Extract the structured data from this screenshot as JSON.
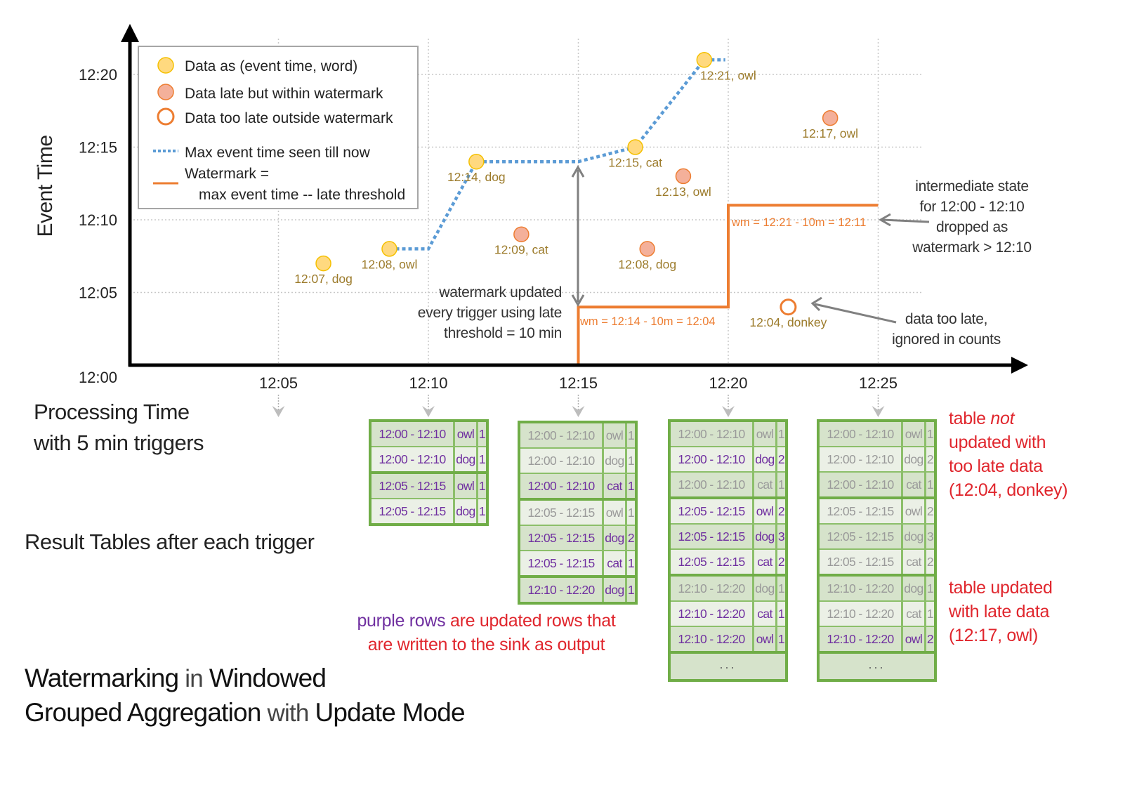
{
  "axes": {
    "ylabel": "Event Time",
    "xlabel_lines": [
      "Processing Time",
      "with 5 min triggers"
    ],
    "y_ticks": [
      "12:00",
      "12:05",
      "12:10",
      "12:15",
      "12:20"
    ],
    "x_ticks": [
      "12:05",
      "12:10",
      "12:15",
      "12:20",
      "12:25"
    ]
  },
  "legend": {
    "on_time": "Data as (event time, word)",
    "late": "Data late but within watermark",
    "too_late": "Data too late outside watermark",
    "max_event": "Max event time seen till now",
    "watermark_1": "Watermark =",
    "watermark_2": "max event time -- late threshold"
  },
  "colors": {
    "on_time_fill": "#ffd97f",
    "on_time_stroke": "#f5c000",
    "late_fill": "#f4b09a",
    "late_stroke": "#ed7d31",
    "watermark": "#ed7d31",
    "max_event": "#5b9bd5",
    "point_label": "#9c7b2b",
    "updated_row": "#7030a0",
    "table_border": "#70ad47",
    "note_red": "#e0262d"
  },
  "chart_data": {
    "type": "scatter",
    "ylabel": "Event Time",
    "xlabel": "Processing Time with 5 min triggers",
    "x_unit": "minutes after 12:00 (processing time)",
    "y_unit": "minutes after 12:00 (event time)",
    "xlim": [
      0,
      30
    ],
    "ylim": [
      0,
      22
    ],
    "grid": true,
    "legend_position": "top-left",
    "points": [
      {
        "label": "12:07, dog",
        "processing": 6.5,
        "event": 7,
        "kind": "on_time"
      },
      {
        "label": "12:08, owl",
        "processing": 8.7,
        "event": 8,
        "kind": "on_time"
      },
      {
        "label": "12:14, dog",
        "processing": 11.6,
        "event": 14,
        "kind": "on_time"
      },
      {
        "label": "12:09, cat",
        "processing": 13.1,
        "event": 9,
        "kind": "late"
      },
      {
        "label": "12:15, cat",
        "processing": 16.9,
        "event": 15,
        "kind": "on_time"
      },
      {
        "label": "12:08, dog",
        "processing": 17.3,
        "event": 8,
        "kind": "late"
      },
      {
        "label": "12:13, owl",
        "processing": 18.5,
        "event": 13,
        "kind": "late"
      },
      {
        "label": "12:21, owl",
        "processing": 19.2,
        "event": 21,
        "kind": "on_time"
      },
      {
        "label": "12:04, donkey",
        "processing": 22.0,
        "event": 4,
        "kind": "too_late"
      },
      {
        "label": "12:17, owl",
        "processing": 23.4,
        "event": 17,
        "kind": "late"
      }
    ],
    "max_event_time_line": [
      [
        8.7,
        8
      ],
      [
        10,
        8
      ],
      [
        11.6,
        14
      ],
      [
        15,
        14
      ],
      [
        16.9,
        15
      ],
      [
        19.2,
        21
      ],
      [
        19.9,
        21
      ]
    ],
    "watermark_line": [
      [
        15,
        0
      ],
      [
        15,
        4
      ],
      [
        20,
        4
      ],
      [
        20,
        11
      ],
      [
        25,
        11
      ]
    ]
  },
  "annotations": {
    "wm_update": [
      "watermark updated",
      "every trigger using late",
      "threshold = 10 min"
    ],
    "wm1": "wm = 12:14 - 10m = 12:04",
    "wm2": "wm = 12:21 - 10m = 12:11",
    "intermediate": [
      "intermediate state",
      "for 12:00 - 12:10",
      "dropped as",
      "watermark > 12:10"
    ],
    "too_late": [
      "data too late,",
      "ignored in counts"
    ]
  },
  "result_tables_label": "Result Tables after each trigger",
  "tables": [
    {
      "trigger": "12:10",
      "rows": [
        {
          "window": "12:00 - 12:10",
          "word": "owl",
          "count": "1",
          "updated": true
        },
        {
          "window": "12:00 - 12:10",
          "word": "dog",
          "count": "1",
          "updated": true
        },
        {
          "window": "12:05 - 12:15",
          "word": "owl",
          "count": "1",
          "updated": true
        },
        {
          "window": "12:05 - 12:15",
          "word": "dog",
          "count": "1",
          "updated": true
        }
      ],
      "group_ends": [
        1,
        3
      ],
      "ellipsis": false
    },
    {
      "trigger": "12:15",
      "rows": [
        {
          "window": "12:00 - 12:10",
          "word": "owl",
          "count": "1",
          "updated": false
        },
        {
          "window": "12:00 - 12:10",
          "word": "dog",
          "count": "1",
          "updated": false
        },
        {
          "window": "12:00 - 12:10",
          "word": "cat",
          "count": "1",
          "updated": true
        },
        {
          "window": "12:05 - 12:15",
          "word": "owl",
          "count": "1",
          "updated": false
        },
        {
          "window": "12:05 - 12:15",
          "word": "dog",
          "count": "2",
          "updated": true
        },
        {
          "window": "12:05 - 12:15",
          "word": "cat",
          "count": "1",
          "updated": true
        },
        {
          "window": "12:10 - 12:20",
          "word": "dog",
          "count": "1",
          "updated": true
        }
      ],
      "group_ends": [
        2,
        5
      ],
      "ellipsis": false
    },
    {
      "trigger": "12:20",
      "rows": [
        {
          "window": "12:00 - 12:10",
          "word": "owl",
          "count": "1",
          "updated": false
        },
        {
          "window": "12:00 - 12:10",
          "word": "dog",
          "count": "2",
          "updated": true
        },
        {
          "window": "12:00 - 12:10",
          "word": "cat",
          "count": "1",
          "updated": false
        },
        {
          "window": "12:05 - 12:15",
          "word": "owl",
          "count": "2",
          "updated": true
        },
        {
          "window": "12:05 - 12:15",
          "word": "dog",
          "count": "3",
          "updated": true
        },
        {
          "window": "12:05 - 12:15",
          "word": "cat",
          "count": "2",
          "updated": true
        },
        {
          "window": "12:10 - 12:20",
          "word": "dog",
          "count": "1",
          "updated": false
        },
        {
          "window": "12:10 - 12:20",
          "word": "cat",
          "count": "1",
          "updated": true
        },
        {
          "window": "12:10 - 12:20",
          "word": "owl",
          "count": "1",
          "updated": true
        }
      ],
      "group_ends": [
        2,
        5,
        8
      ],
      "ellipsis": true
    },
    {
      "trigger": "12:25",
      "rows": [
        {
          "window": "12:00 - 12:10",
          "word": "owl",
          "count": "1",
          "updated": false
        },
        {
          "window": "12:00 - 12:10",
          "word": "dog",
          "count": "2",
          "updated": false
        },
        {
          "window": "12:00 - 12:10",
          "word": "cat",
          "count": "1",
          "updated": false
        },
        {
          "window": "12:05 - 12:15",
          "word": "owl",
          "count": "2",
          "updated": false
        },
        {
          "window": "12:05 - 12:15",
          "word": "dog",
          "count": "3",
          "updated": false
        },
        {
          "window": "12:05 - 12:15",
          "word": "cat",
          "count": "2",
          "updated": false
        },
        {
          "window": "12:10 - 12:20",
          "word": "dog",
          "count": "1",
          "updated": false
        },
        {
          "window": "12:10 - 12:20",
          "word": "cat",
          "count": "1",
          "updated": false
        },
        {
          "window": "12:10 - 12:20",
          "word": "owl",
          "count": "2",
          "updated": true
        }
      ],
      "group_ends": [
        2,
        5,
        8
      ],
      "ellipsis": true
    }
  ],
  "ellipsis_text": "...",
  "notes": {
    "purple_rows_1": "purple rows",
    "purple_rows_2": " are updated rows that",
    "purple_rows_3": "are written to the sink as output",
    "not_updated_a": "table ",
    "not_updated_b": "not",
    "not_updated_c": "updated with",
    "not_updated_d": "too late data",
    "not_updated_e": "(12:04, donkey)",
    "updated_a": "table updated",
    "updated_b": "with late data",
    "updated_c": "(12:17, owl)"
  },
  "title": {
    "w1": "Watermarking",
    "w2": " in ",
    "w3": "Windowed",
    "w4": "Grouped Aggregation",
    "w5": " with ",
    "w6": "Update Mode"
  }
}
